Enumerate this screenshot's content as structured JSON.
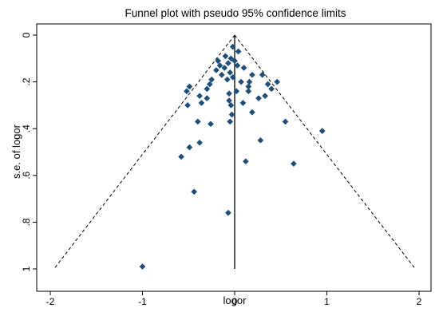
{
  "chart_data": {
    "type": "scatter",
    "title": "Funnel plot with pseudo 95% confidence limits",
    "xlabel": "logor",
    "ylabel": "s.e. of logor",
    "xlim": [
      -2,
      2
    ],
    "ylim": [
      1,
      0
    ],
    "y_axis_reversed": true,
    "grid": false,
    "x_ticks": [
      "-2",
      "-1",
      "0",
      "1",
      "2"
    ],
    "y_ticks": [
      "0",
      ".2",
      ".4",
      ".6",
      ".8",
      "1"
    ],
    "reference_line": {
      "x": 0,
      "style": "solid"
    },
    "confidence_limits": {
      "label": "pseudo 95% confidence limits",
      "z": 1.96,
      "style": "dashed",
      "se_max": 1.0
    },
    "marker_color": "#1f4e79",
    "points": [
      {
        "x": -0.02,
        "y": 0.05
      },
      {
        "x": 0.04,
        "y": 0.07
      },
      {
        "x": -0.1,
        "y": 0.09
      },
      {
        "x": -0.04,
        "y": 0.1
      },
      {
        "x": 0.0,
        "y": 0.11
      },
      {
        "x": -0.18,
        "y": 0.11
      },
      {
        "x": -0.07,
        "y": 0.12
      },
      {
        "x": -0.16,
        "y": 0.13
      },
      {
        "x": 0.03,
        "y": 0.13
      },
      {
        "x": 0.1,
        "y": 0.14
      },
      {
        "x": -0.11,
        "y": 0.14
      },
      {
        "x": -0.2,
        "y": 0.15
      },
      {
        "x": -0.05,
        "y": 0.16
      },
      {
        "x": -0.14,
        "y": 0.17
      },
      {
        "x": -0.02,
        "y": 0.18
      },
      {
        "x": 0.19,
        "y": 0.17
      },
      {
        "x": 0.3,
        "y": 0.17
      },
      {
        "x": -0.08,
        "y": 0.19
      },
      {
        "x": -0.25,
        "y": 0.19
      },
      {
        "x": 0.16,
        "y": 0.2
      },
      {
        "x": 0.07,
        "y": 0.2
      },
      {
        "x": -0.27,
        "y": 0.21
      },
      {
        "x": 0.46,
        "y": 0.2
      },
      {
        "x": 0.36,
        "y": 0.21
      },
      {
        "x": -0.49,
        "y": 0.22
      },
      {
        "x": -0.3,
        "y": 0.23
      },
      {
        "x": 0.15,
        "y": 0.22
      },
      {
        "x": 0.4,
        "y": 0.23
      },
      {
        "x": -0.52,
        "y": 0.24
      },
      {
        "x": 0.15,
        "y": 0.24
      },
      {
        "x": -0.06,
        "y": 0.25
      },
      {
        "x": 0.02,
        "y": 0.24
      },
      {
        "x": 0.33,
        "y": 0.26
      },
      {
        "x": 0.26,
        "y": 0.27
      },
      {
        "x": -0.38,
        "y": 0.26
      },
      {
        "x": -0.3,
        "y": 0.27
      },
      {
        "x": -0.06,
        "y": 0.28
      },
      {
        "x": -0.36,
        "y": 0.29
      },
      {
        "x": 0.09,
        "y": 0.29
      },
      {
        "x": -0.51,
        "y": 0.3
      },
      {
        "x": -0.04,
        "y": 0.3
      },
      {
        "x": -0.03,
        "y": 0.34
      },
      {
        "x": 0.19,
        "y": 0.33
      },
      {
        "x": -0.05,
        "y": 0.37
      },
      {
        "x": -0.4,
        "y": 0.37
      },
      {
        "x": -0.26,
        "y": 0.38
      },
      {
        "x": 0.55,
        "y": 0.37
      },
      {
        "x": 0.95,
        "y": 0.41
      },
      {
        "x": -0.38,
        "y": 0.46
      },
      {
        "x": 0.28,
        "y": 0.45
      },
      {
        "x": -0.49,
        "y": 0.48
      },
      {
        "x": -0.58,
        "y": 0.52
      },
      {
        "x": 0.12,
        "y": 0.54
      },
      {
        "x": 0.64,
        "y": 0.55
      },
      {
        "x": -0.44,
        "y": 0.67
      },
      {
        "x": -0.07,
        "y": 0.76
      },
      {
        "x": -1.0,
        "y": 0.99
      }
    ]
  }
}
